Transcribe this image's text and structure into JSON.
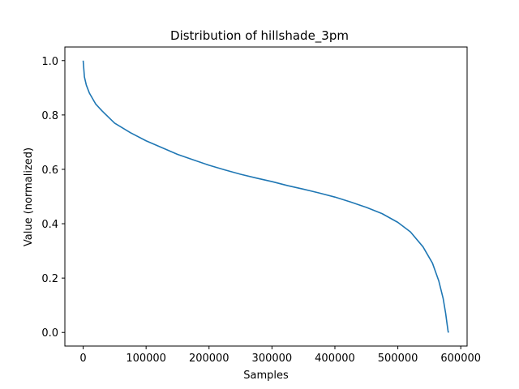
{
  "chart_data": {
    "type": "line",
    "title": "Distribution of hillshade_3pm",
    "xlabel": "Samples",
    "ylabel": "Value (normalized)",
    "xlim": [
      -29050,
      610050
    ],
    "ylim": [
      -0.05,
      1.05
    ],
    "x_ticks": [
      0,
      100000,
      200000,
      300000,
      400000,
      500000,
      600000
    ],
    "x_tick_labels": [
      "0",
      "100000",
      "200000",
      "300000",
      "400000",
      "500000",
      "600000"
    ],
    "y_ticks": [
      0.0,
      0.2,
      0.4,
      0.6,
      0.8,
      1.0
    ],
    "y_tick_labels": [
      "0.0",
      "0.2",
      "0.4",
      "0.6",
      "0.8",
      "1.0"
    ],
    "grid": false,
    "legend": "none",
    "series": [
      {
        "color": "#1f77b4",
        "x": [
          0,
          2000,
          5000,
          10000,
          20000,
          30000,
          50000,
          75000,
          100000,
          125000,
          150000,
          175000,
          200000,
          225000,
          250000,
          275000,
          300000,
          325000,
          350000,
          375000,
          400000,
          425000,
          450000,
          475000,
          500000,
          520000,
          540000,
          555000,
          565000,
          572000,
          576000,
          578000,
          579500,
          580000,
          581000
        ],
        "y": [
          1.0,
          0.94,
          0.91,
          0.88,
          0.84,
          0.815,
          0.77,
          0.735,
          0.705,
          0.68,
          0.655,
          0.635,
          0.615,
          0.598,
          0.582,
          0.568,
          0.555,
          0.54,
          0.527,
          0.513,
          0.498,
          0.48,
          0.46,
          0.437,
          0.405,
          0.37,
          0.315,
          0.255,
          0.19,
          0.125,
          0.07,
          0.035,
          0.01,
          0.002,
          0.0
        ]
      }
    ]
  }
}
